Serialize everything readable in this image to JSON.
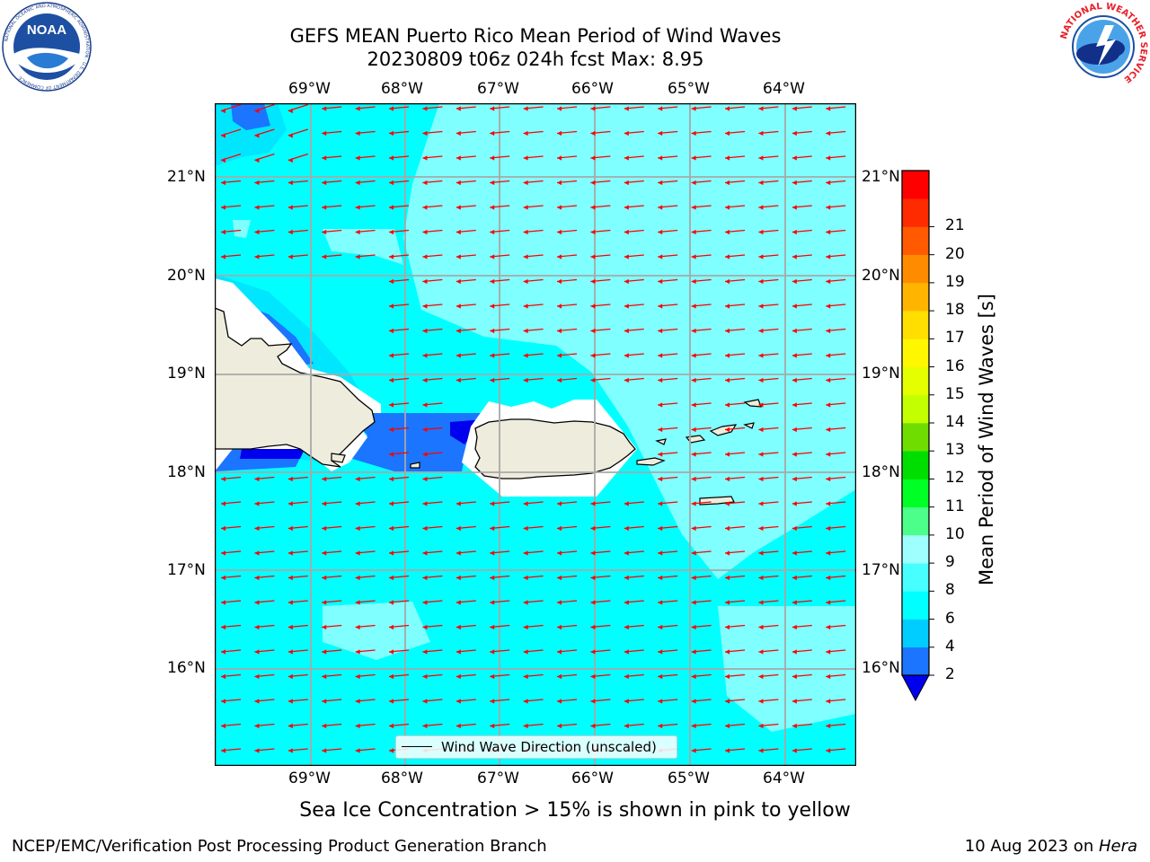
{
  "title": {
    "line1": "GEFS MEAN Puerto Rico Mean Period of Wind Waves",
    "line2": "20230809 t06z 024h fcst   Max: 8.95"
  },
  "logos": {
    "left": {
      "name": "noaa-logo",
      "text": "NOAA",
      "ring_text": "NATIONAL OCEANIC AND ATMOSPHERIC ADMINISTRATION · U.S. DEPARTMENT OF COMMERCE"
    },
    "right": {
      "name": "nws-logo",
      "ring_text": "NATIONAL WEATHER SERVICE"
    }
  },
  "map": {
    "lon_labels": [
      "69°W",
      "68°W",
      "67°W",
      "66°W",
      "65°W",
      "64°W"
    ],
    "lat_labels": [
      "21°N",
      "20°N",
      "19°N",
      "18°N",
      "17°N",
      "16°N"
    ],
    "land_color": "#eeeddd",
    "arrow_color": "#ff0000",
    "arrow_direction": "westward (wind waves from the east)",
    "legend": {
      "label": "Wind Wave Direction (unscaled)"
    }
  },
  "colorbar": {
    "label": "Mean Period of Wind Waves [s]",
    "ticks": [
      "2",
      "4",
      "6",
      "8",
      "9",
      "10",
      "11",
      "12",
      "13",
      "14",
      "15",
      "16",
      "17",
      "18",
      "19",
      "20",
      "21"
    ],
    "colors": [
      "#1b75ff",
      "#00cdff",
      "#00ffff",
      "#47ffff",
      "#9fffff",
      "#4cfe8a",
      "#00ff24",
      "#00dd00",
      "#70dd00",
      "#c3ff00",
      "#e4ff00",
      "#fff700",
      "#ffde00",
      "#ffb500",
      "#ff8c00",
      "#ff5a00",
      "#ff2b00",
      "#ff0000"
    ],
    "extend_min_color": "#0000ee"
  },
  "notes": {
    "sea_ice": "Sea Ice Concentration > 15% is shown in pink to yellow",
    "credit": "NCEP/EMC/Verification Post Processing Product Generation Branch",
    "date_prefix": "10 Aug 2023 on ",
    "host": "Hera"
  }
}
